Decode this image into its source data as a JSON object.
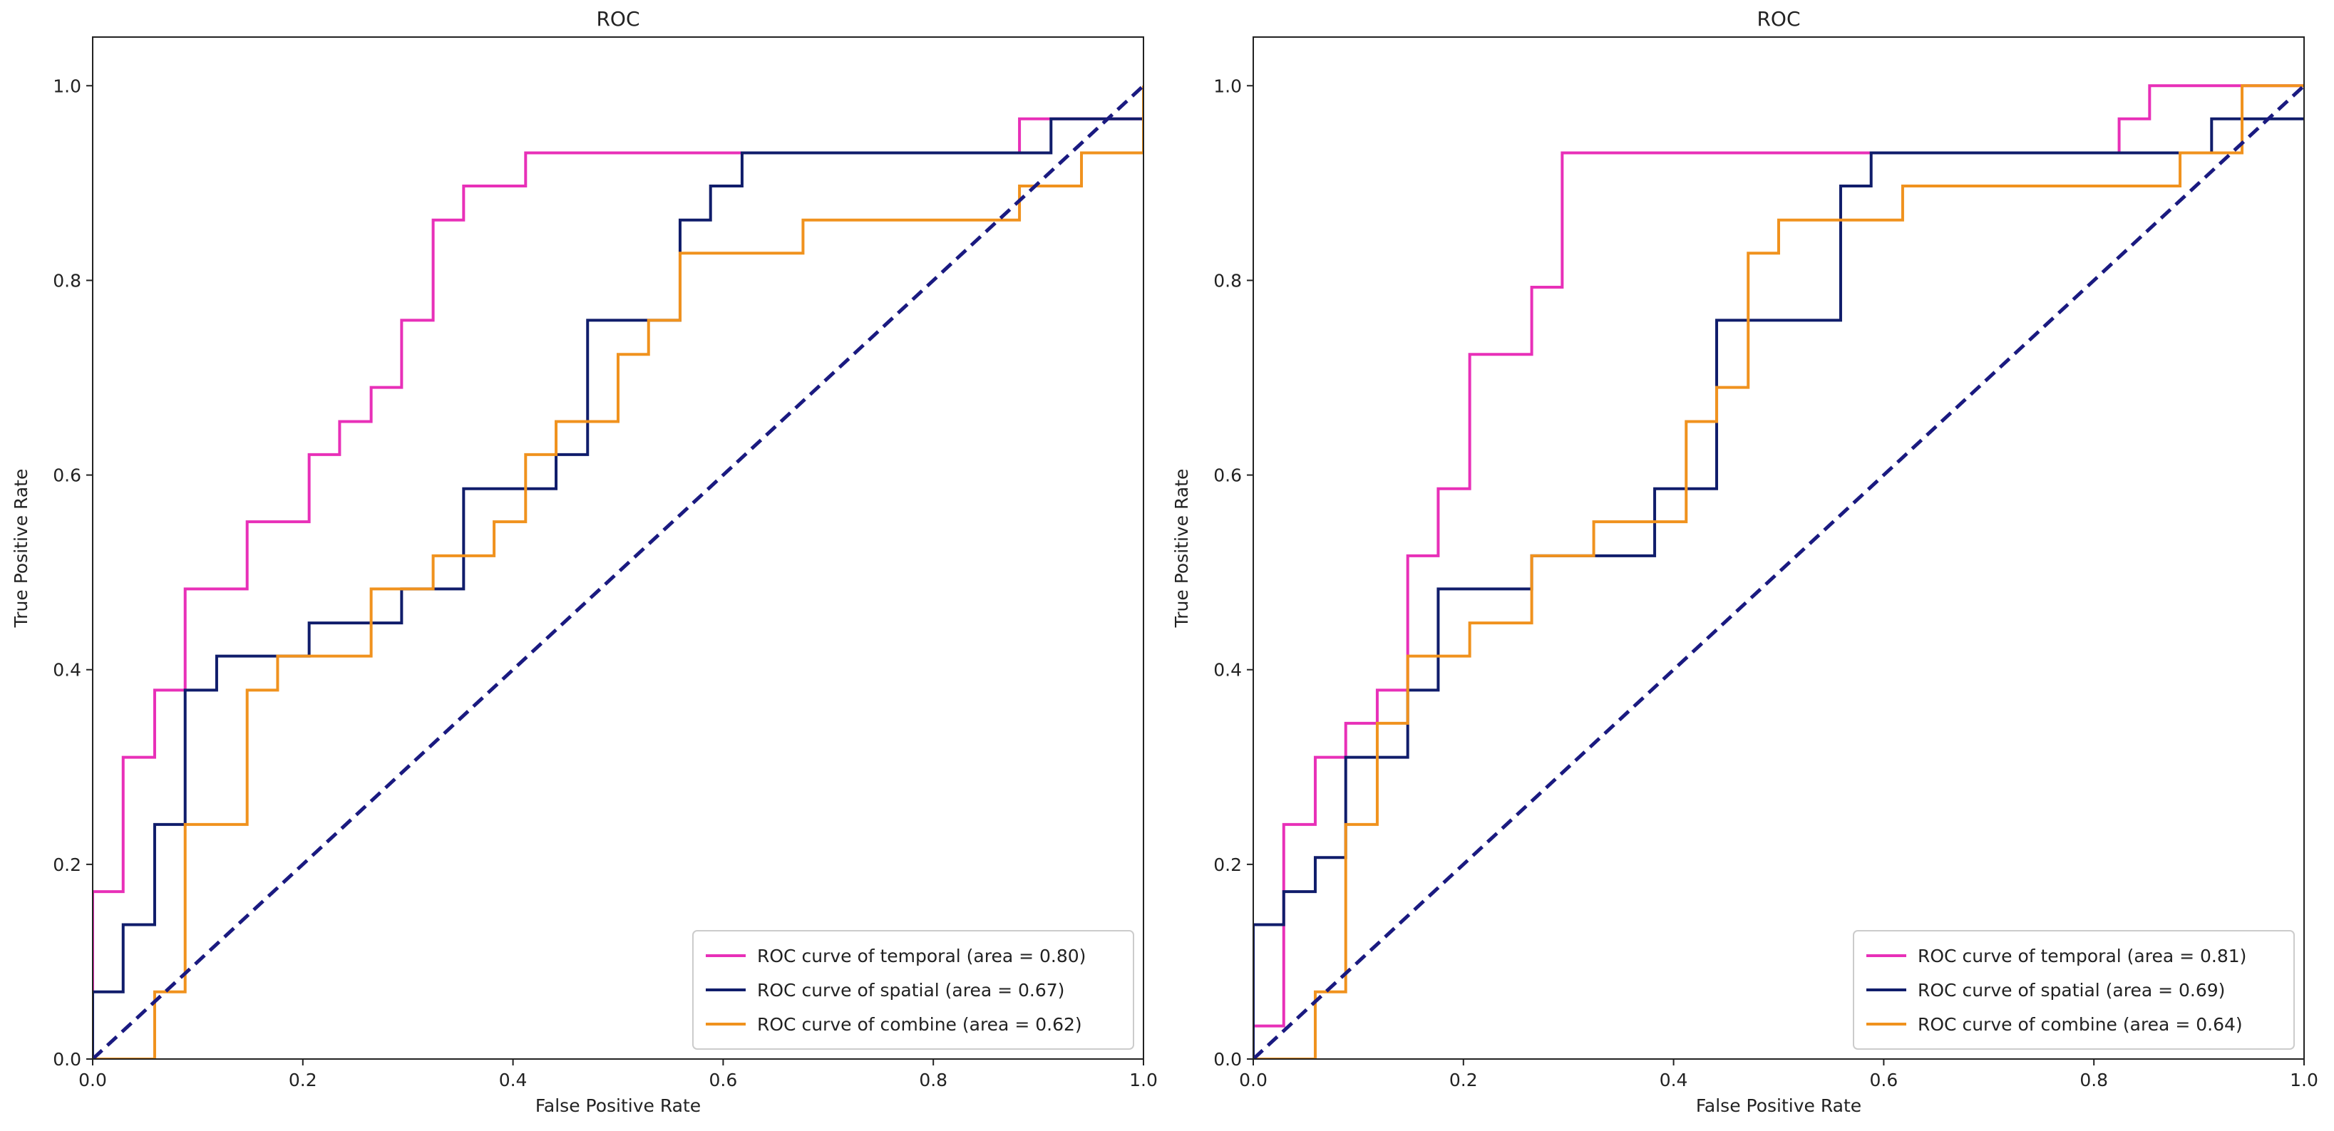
{
  "chart_data": [
    {
      "type": "line",
      "title": "ROC",
      "xlabel": "False Positive Rate",
      "ylabel": "True Positive Rate",
      "xlim": [
        0,
        1
      ],
      "ylim": [
        0,
        1.05
      ],
      "xticks": [
        "0.0",
        "0.2",
        "0.4",
        "0.6",
        "0.8",
        "1.0"
      ],
      "yticks": [
        "0.0",
        "0.2",
        "0.4",
        "0.6",
        "0.8",
        "1.0"
      ],
      "legend_position": "lower-right",
      "series": [
        {
          "name": "ROC curve of temporal (area = 0.80)",
          "color": "#e830b8",
          "x": [
            0,
            0,
            0.029,
            0.029,
            0.059,
            0.059,
            0.088,
            0.088,
            0.147,
            0.147,
            0.206,
            0.206,
            0.235,
            0.235,
            0.265,
            0.265,
            0.294,
            0.294,
            0.324,
            0.324,
            0.353,
            0.353,
            0.412,
            0.412,
            0.882,
            0.882,
            1.0
          ],
          "y": [
            0,
            0.172,
            0.172,
            0.31,
            0.31,
            0.379,
            0.379,
            0.483,
            0.483,
            0.552,
            0.552,
            0.621,
            0.621,
            0.655,
            0.655,
            0.69,
            0.69,
            0.759,
            0.759,
            0.862,
            0.862,
            0.897,
            0.897,
            0.931,
            0.931,
            0.966,
            0.966
          ]
        },
        {
          "name": "ROC curve of spatial (area = 0.67)",
          "color": "#101d6b",
          "x": [
            0,
            0,
            0.029,
            0.029,
            0.059,
            0.059,
            0.088,
            0.088,
            0.118,
            0.118,
            0.206,
            0.206,
            0.294,
            0.294,
            0.353,
            0.353,
            0.382,
            0.382,
            0.441,
            0.441,
            0.471,
            0.471,
            0.559,
            0.559,
            0.588,
            0.588,
            0.618,
            0.618,
            0.912,
            0.912,
            1.0
          ],
          "y": [
            0,
            0.069,
            0.069,
            0.138,
            0.138,
            0.241,
            0.241,
            0.379,
            0.379,
            0.414,
            0.414,
            0.448,
            0.448,
            0.483,
            0.483,
            0.586,
            0.586,
            0.586,
            0.586,
            0.621,
            0.621,
            0.759,
            0.759,
            0.862,
            0.862,
            0.897,
            0.897,
            0.931,
            0.931,
            0.966,
            0.966
          ]
        },
        {
          "name": "ROC curve of combine (area = 0.62)",
          "color": "#f0921e",
          "x": [
            0,
            0.059,
            0.059,
            0.088,
            0.088,
            0.147,
            0.147,
            0.176,
            0.176,
            0.265,
            0.265,
            0.324,
            0.324,
            0.382,
            0.382,
            0.412,
            0.412,
            0.441,
            0.441,
            0.5,
            0.5,
            0.529,
            0.529,
            0.559,
            0.559,
            0.676,
            0.676,
            0.882,
            0.882,
            0.941,
            0.941,
            1.0,
            1.0
          ],
          "y": [
            0,
            0,
            0.069,
            0.069,
            0.241,
            0.241,
            0.379,
            0.379,
            0.414,
            0.414,
            0.483,
            0.483,
            0.517,
            0.517,
            0.552,
            0.552,
            0.621,
            0.621,
            0.655,
            0.655,
            0.724,
            0.724,
            0.759,
            0.759,
            0.828,
            0.828,
            0.862,
            0.862,
            0.897,
            0.897,
            0.931,
            0.931,
            1.0
          ]
        },
        {
          "name": "",
          "color": "#1a1a80",
          "dashed": true,
          "x": [
            0,
            1
          ],
          "y": [
            0,
            1
          ]
        }
      ]
    },
    {
      "type": "line",
      "title": "ROC",
      "xlabel": "False Positive Rate",
      "ylabel": "True Positive Rate",
      "xlim": [
        0,
        1
      ],
      "ylim": [
        0,
        1.05
      ],
      "xticks": [
        "0.0",
        "0.2",
        "0.4",
        "0.6",
        "0.8",
        "1.0"
      ],
      "yticks": [
        "0.0",
        "0.2",
        "0.4",
        "0.6",
        "0.8",
        "1.0"
      ],
      "legend_position": "lower-right",
      "series": [
        {
          "name": "ROC curve of temporal (area = 0.81)",
          "color": "#e830b8",
          "x": [
            0,
            0,
            0.029,
            0.029,
            0.059,
            0.059,
            0.088,
            0.088,
            0.118,
            0.118,
            0.147,
            0.147,
            0.176,
            0.176,
            0.206,
            0.206,
            0.265,
            0.265,
            0.294,
            0.294,
            0.824,
            0.824,
            0.853,
            0.853,
            1.0
          ],
          "y": [
            0,
            0.034,
            0.034,
            0.241,
            0.241,
            0.31,
            0.31,
            0.345,
            0.345,
            0.379,
            0.379,
            0.517,
            0.517,
            0.586,
            0.586,
            0.724,
            0.724,
            0.793,
            0.793,
            0.931,
            0.931,
            0.966,
            0.966,
            1.0,
            1.0
          ]
        },
        {
          "name": "ROC curve of spatial (area = 0.69)",
          "color": "#101d6b",
          "x": [
            0,
            0,
            0.029,
            0.029,
            0.059,
            0.059,
            0.088,
            0.088,
            0.147,
            0.147,
            0.176,
            0.176,
            0.265,
            0.265,
            0.382,
            0.382,
            0.412,
            0.412,
            0.441,
            0.441,
            0.559,
            0.559,
            0.588,
            0.588,
            0.912,
            0.912,
            1.0
          ],
          "y": [
            0,
            0.138,
            0.138,
            0.172,
            0.172,
            0.207,
            0.207,
            0.31,
            0.31,
            0.379,
            0.379,
            0.483,
            0.483,
            0.517,
            0.517,
            0.586,
            0.586,
            0.586,
            0.586,
            0.759,
            0.759,
            0.897,
            0.897,
            0.931,
            0.931,
            0.966,
            0.966
          ]
        },
        {
          "name": "ROC curve of combine (area = 0.64)",
          "color": "#f0921e",
          "x": [
            0,
            0.059,
            0.059,
            0.088,
            0.088,
            0.118,
            0.118,
            0.147,
            0.147,
            0.206,
            0.206,
            0.265,
            0.265,
            0.324,
            0.324,
            0.412,
            0.412,
            0.441,
            0.441,
            0.471,
            0.471,
            0.5,
            0.5,
            0.618,
            0.618,
            0.882,
            0.882,
            0.941,
            0.941,
            1.0,
            1.0
          ],
          "y": [
            0,
            0,
            0.069,
            0.069,
            0.241,
            0.241,
            0.345,
            0.345,
            0.414,
            0.414,
            0.448,
            0.448,
            0.517,
            0.517,
            0.552,
            0.552,
            0.655,
            0.655,
            0.69,
            0.69,
            0.828,
            0.828,
            0.862,
            0.862,
            0.897,
            0.897,
            0.931,
            0.931,
            1.0,
            1.0,
            1.0
          ]
        },
        {
          "name": "",
          "color": "#1a1a80",
          "dashed": true,
          "x": [
            0,
            1
          ],
          "y": [
            0,
            1
          ]
        }
      ]
    }
  ]
}
